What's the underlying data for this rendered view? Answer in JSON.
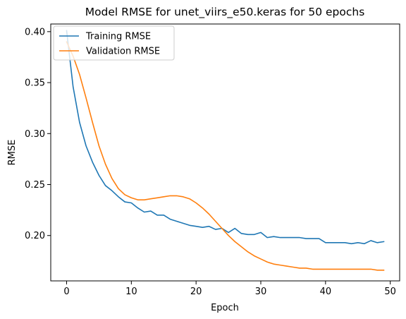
{
  "chart_data": {
    "type": "line",
    "title": "Model RMSE for unet_viirs_e50.keras for 50 epochs",
    "xlabel": "Epoch",
    "ylabel": "RMSE",
    "xlim": [
      -2.45,
      51.45
    ],
    "ylim": [
      0.1555,
      0.4075
    ],
    "xticks": [
      0,
      10,
      20,
      30,
      40,
      50
    ],
    "xtick_labels": [
      "0",
      "10",
      "20",
      "30",
      "40",
      "50"
    ],
    "yticks": [
      0.2,
      0.25,
      0.3,
      0.35,
      0.4
    ],
    "ytick_labels": [
      "0.20",
      "0.25",
      "0.30",
      "0.35",
      "0.40"
    ],
    "grid": false,
    "legend_position": "top-left",
    "series": [
      {
        "name": "Training RMSE",
        "color": "#1f77b4",
        "x": [
          0,
          1,
          2,
          3,
          4,
          5,
          6,
          7,
          8,
          9,
          10,
          11,
          12,
          13,
          14,
          15,
          16,
          17,
          18,
          19,
          20,
          21,
          22,
          23,
          24,
          25,
          26,
          27,
          28,
          29,
          30,
          31,
          32,
          33,
          34,
          35,
          36,
          37,
          38,
          39,
          40,
          41,
          42,
          43,
          44,
          45,
          46,
          47,
          48,
          49
        ],
        "values": [
          0.401,
          0.346,
          0.311,
          0.288,
          0.272,
          0.259,
          0.249,
          0.244,
          0.238,
          0.233,
          0.232,
          0.227,
          0.223,
          0.224,
          0.22,
          0.22,
          0.216,
          0.214,
          0.212,
          0.21,
          0.209,
          0.208,
          0.209,
          0.206,
          0.207,
          0.203,
          0.207,
          0.202,
          0.201,
          0.201,
          0.203,
          0.198,
          0.199,
          0.198,
          0.198,
          0.198,
          0.198,
          0.197,
          0.197,
          0.197,
          0.193,
          0.193,
          0.193,
          0.193,
          0.192,
          0.193,
          0.192,
          0.195,
          0.193,
          0.194
        ]
      },
      {
        "name": "Validation RMSE",
        "color": "#ff7f0e",
        "x": [
          0,
          1,
          2,
          3,
          4,
          5,
          6,
          7,
          8,
          9,
          10,
          11,
          12,
          13,
          14,
          15,
          16,
          17,
          18,
          19,
          20,
          21,
          22,
          23,
          24,
          25,
          26,
          27,
          28,
          29,
          30,
          31,
          32,
          33,
          34,
          35,
          36,
          37,
          38,
          39,
          40,
          41,
          42,
          43,
          44,
          45,
          46,
          47,
          48,
          49
        ],
        "values": [
          0.39,
          0.376,
          0.358,
          0.335,
          0.311,
          0.288,
          0.27,
          0.256,
          0.246,
          0.24,
          0.237,
          0.235,
          0.235,
          0.236,
          0.237,
          0.238,
          0.239,
          0.239,
          0.238,
          0.236,
          0.232,
          0.227,
          0.221,
          0.214,
          0.207,
          0.2,
          0.194,
          0.189,
          0.184,
          0.18,
          0.177,
          0.174,
          0.172,
          0.171,
          0.17,
          0.169,
          0.168,
          0.168,
          0.167,
          0.167,
          0.167,
          0.167,
          0.167,
          0.167,
          0.167,
          0.167,
          0.167,
          0.167,
          0.166,
          0.166
        ]
      }
    ]
  }
}
